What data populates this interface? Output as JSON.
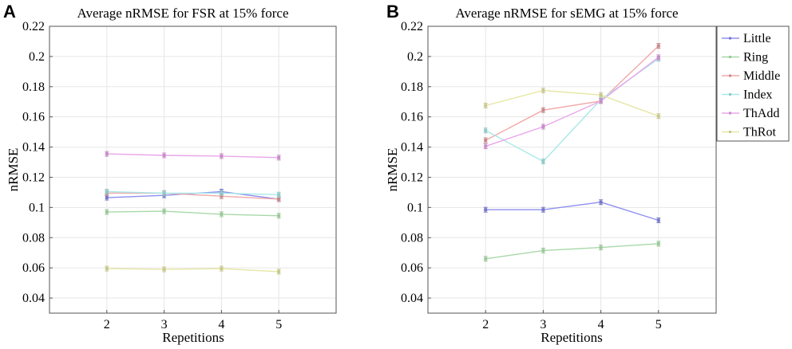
{
  "chart_data": [
    {
      "panel": "A",
      "type": "line",
      "title": "Average nRMSE for FSR at 15% force",
      "xlabel": "Repetitions",
      "ylabel": "nRMSE",
      "x": [
        2,
        3,
        4,
        5
      ],
      "xlim": [
        1,
        6
      ],
      "ylim": [
        0.03,
        0.22
      ],
      "yticks": [
        "0.04",
        "0.06",
        "0.08",
        "0.1",
        "0.12",
        "0.14",
        "0.16",
        "0.18",
        "0.2",
        "0.22"
      ],
      "grid": true,
      "series": [
        {
          "name": "Little",
          "color": "#8f8ff0",
          "values": [
            0.1065,
            0.108,
            0.1105,
            0.1055
          ]
        },
        {
          "name": "Ring",
          "color": "#a8d8a8",
          "values": [
            0.097,
            0.0975,
            0.0955,
            0.0945
          ]
        },
        {
          "name": "Middle",
          "color": "#f2a8a8",
          "values": [
            0.1095,
            0.1095,
            0.1075,
            0.1055
          ]
        },
        {
          "name": "Index",
          "color": "#a8e8e8",
          "values": [
            0.1105,
            0.1095,
            0.1095,
            0.1085
          ]
        },
        {
          "name": "ThAdd",
          "color": "#eaa6ea",
          "values": [
            0.1355,
            0.1345,
            0.134,
            0.133
          ]
        },
        {
          "name": "ThRot",
          "color": "#e6e6a6",
          "values": [
            0.0595,
            0.059,
            0.0595,
            0.0575
          ]
        }
      ]
    },
    {
      "panel": "B",
      "type": "line",
      "title": "Average nRMSE for sEMG at 15% force",
      "xlabel": "Repetitions",
      "ylabel": "nRMSE",
      "x": [
        2,
        3,
        4,
        5
      ],
      "xlim": [
        1,
        6
      ],
      "ylim": [
        0.03,
        0.22
      ],
      "yticks": [
        "0.04",
        "0.06",
        "0.08",
        "0.1",
        "0.12",
        "0.14",
        "0.16",
        "0.18",
        "0.2",
        "0.22"
      ],
      "grid": true,
      "legend": "top-right",
      "series": [
        {
          "name": "Little",
          "color": "#8f8ff0",
          "values": [
            0.0985,
            0.0985,
            0.1035,
            0.0915
          ]
        },
        {
          "name": "Ring",
          "color": "#a8d8a8",
          "values": [
            0.066,
            0.0715,
            0.0735,
            0.076
          ]
        },
        {
          "name": "Middle",
          "color": "#f2a8a8",
          "values": [
            0.1445,
            0.1645,
            0.1705,
            0.207
          ]
        },
        {
          "name": "Index",
          "color": "#a8e8e8",
          "values": [
            0.151,
            0.1305,
            0.1715,
            0.1985
          ]
        },
        {
          "name": "ThAdd",
          "color": "#eaa6ea",
          "values": [
            0.1405,
            0.1535,
            0.1705,
            0.1995
          ]
        },
        {
          "name": "ThRot",
          "color": "#e6e6a6",
          "values": [
            0.1675,
            0.1775,
            0.1745,
            0.1605
          ]
        }
      ]
    }
  ]
}
